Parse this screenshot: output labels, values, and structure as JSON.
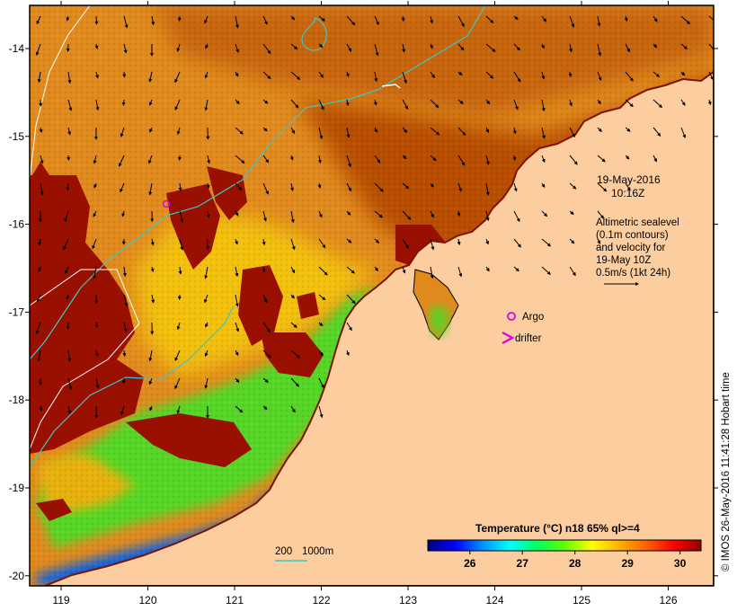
{
  "colors": {
    "land": "#fccd9e",
    "warm_bg": "#e08a1e",
    "coast_dark": "#9e2a00",
    "patch": "#990f00",
    "green": "#54d626",
    "cyan_line": "#3cc8c8",
    "magenta": "#e000e0",
    "frame": "#000000"
  },
  "map": {
    "x_ticks": [
      "119",
      "120",
      "121",
      "122",
      "123",
      "124",
      "125",
      "126"
    ],
    "y_ticks": [
      "-14",
      "-15",
      "-16",
      "-17",
      "-18",
      "-19",
      "-20"
    ],
    "timestamp": {
      "date": "19-May-2016",
      "time": "10:16Z"
    },
    "info": {
      "line1": "Altimetric sealevel",
      "line2": "(0.1m contours)",
      "line3": "and velocity for",
      "line4": "19-May 10Z",
      "line5": "0.5m/s (1kt 24h)"
    },
    "legend": {
      "argo": "Argo",
      "drifter": "drifter"
    },
    "depth_legend": {
      "d1": "200",
      "d2": "1000m"
    },
    "credit": "© IMOS 26-May-2016 11:41:28 Hobart time"
  },
  "colorbar": {
    "title": "Temperature (°C) n18 65% ql>=4",
    "ticks": [
      "26",
      "27",
      "28",
      "29",
      "30"
    ],
    "min": 25.2,
    "max": 30.4,
    "tick_values": [
      26,
      27,
      28,
      29,
      30
    ],
    "stops": [
      "#00007e",
      "#0000ff",
      "#0090ff",
      "#00ffff",
      "#00ff60",
      "#60ff00",
      "#ffff00",
      "#ffb000",
      "#ff6000",
      "#ff0000",
      "#900000"
    ]
  }
}
